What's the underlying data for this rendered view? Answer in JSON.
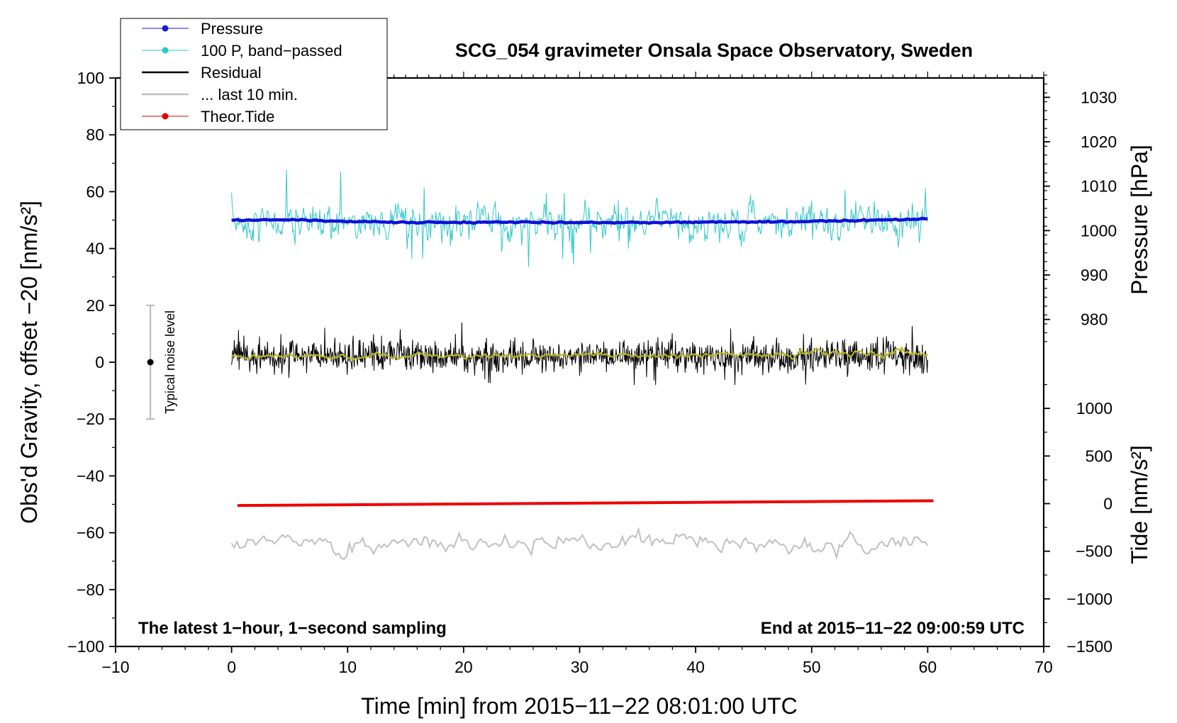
{
  "chart_data": {
    "type": "line",
    "title": "SCG_054 gravimeter Onsala Space Observatory, Sweden",
    "xlabel": "Time [min] from 2015−11−22 08:01:00 UTC",
    "ylabel_left": "Obs'd Gravity, offset −20 [nm/s²]",
    "ylabel_pressure": "Pressure [hPa]",
    "ylabel_tide": "Tide [nm/s²]",
    "xlim": [
      -10,
      70
    ],
    "ylim": [
      -100,
      100
    ],
    "pressure_lim": [
      975,
      1035
    ],
    "tide_lim": [
      -1500,
      1500
    ],
    "x_ticks": [
      -10,
      0,
      10,
      20,
      30,
      40,
      50,
      60,
      70
    ],
    "x_tick_labels": [
      "−10",
      "0",
      "10",
      "20",
      "30",
      "40",
      "50",
      "60",
      "70"
    ],
    "y_ticks": [
      -100,
      -80,
      -60,
      -40,
      -20,
      0,
      20,
      40,
      60,
      80,
      100
    ],
    "y_tick_labels": [
      "−100",
      "−80",
      "−60",
      "−40",
      "−20",
      "0",
      "20",
      "40",
      "60",
      "80",
      "100"
    ],
    "pressure_ticks": [
      980,
      990,
      1000,
      1010,
      1020,
      1030
    ],
    "pressure_tick_labels": [
      "980",
      "990",
      "1000",
      "1010",
      "1020",
      "1030"
    ],
    "tide_ticks": [
      -1500,
      -1000,
      -500,
      0,
      500,
      1000
    ],
    "tide_tick_labels": [
      "−1500",
      "−1000",
      "−500",
      "0",
      "500",
      "1000"
    ],
    "legend": {
      "placement": "top-left",
      "entries": [
        {
          "label": "Pressure",
          "color": "#1a1acc",
          "marker": "dot"
        },
        {
          "label": "100 P, band−passed",
          "color": "#30c8c8",
          "marker": "dot"
        },
        {
          "label": "Residual",
          "color": "#000000",
          "marker": "none"
        },
        {
          "label": "... last 10 min.",
          "color": "#c0c0c0",
          "marker": "none"
        },
        {
          "label": "Theor.Tide",
          "color": "#e00000",
          "marker": "dot"
        }
      ]
    },
    "annotations": {
      "left": "The latest 1−hour, 1−second sampling",
      "right": "End at 2015−11−22 09:00:59 UTC",
      "noise_label": "Typical noise level",
      "noise_bar": {
        "x": -7,
        "center": 0,
        "half_range": 20
      }
    },
    "series": [
      {
        "name": "Pressure",
        "axis": "pressure",
        "color": "#1010d8",
        "x": [
          0,
          5,
          10,
          15,
          20,
          25,
          30,
          35,
          40,
          45,
          50,
          55,
          60
        ],
        "values": [
          1002.3,
          1002.5,
          1002.0,
          1001.9,
          1001.8,
          1001.9,
          1001.8,
          1001.8,
          1001.9,
          1001.9,
          1002.1,
          1002.4,
          1002.6
        ]
      },
      {
        "name": "100 P, band−passed",
        "axis": "left",
        "color": "#30c8c8",
        "x": [
          0,
          60
        ],
        "center": 49,
        "amplitude": 8,
        "peak_range": [
          31,
          69
        ]
      },
      {
        "name": "Residual",
        "axis": "left",
        "color": "#000000",
        "x": [
          0,
          60
        ],
        "center": 2,
        "amplitude": 6,
        "peak_range": [
          -8,
          14
        ]
      },
      {
        "name": "Residual smoothed",
        "axis": "left",
        "color": "#b8b820",
        "x": [
          0,
          10,
          20,
          30,
          40,
          45,
          50,
          55,
          60
        ],
        "values": [
          2,
          2,
          2.2,
          2.5,
          2.5,
          2.8,
          3,
          3.2,
          3.5
        ]
      },
      {
        "name": "Theor.Tide",
        "axis": "tide",
        "color": "#ee0000",
        "x": [
          0.5,
          60.5
        ],
        "values": [
          -20,
          30
        ]
      },
      {
        "name": "... last 10 min.",
        "axis": "left",
        "color": "#c0c0c0",
        "x": [
          0,
          60
        ],
        "center": -64,
        "amplitude": 4,
        "peak_range": [
          -73,
          -54
        ]
      }
    ]
  }
}
